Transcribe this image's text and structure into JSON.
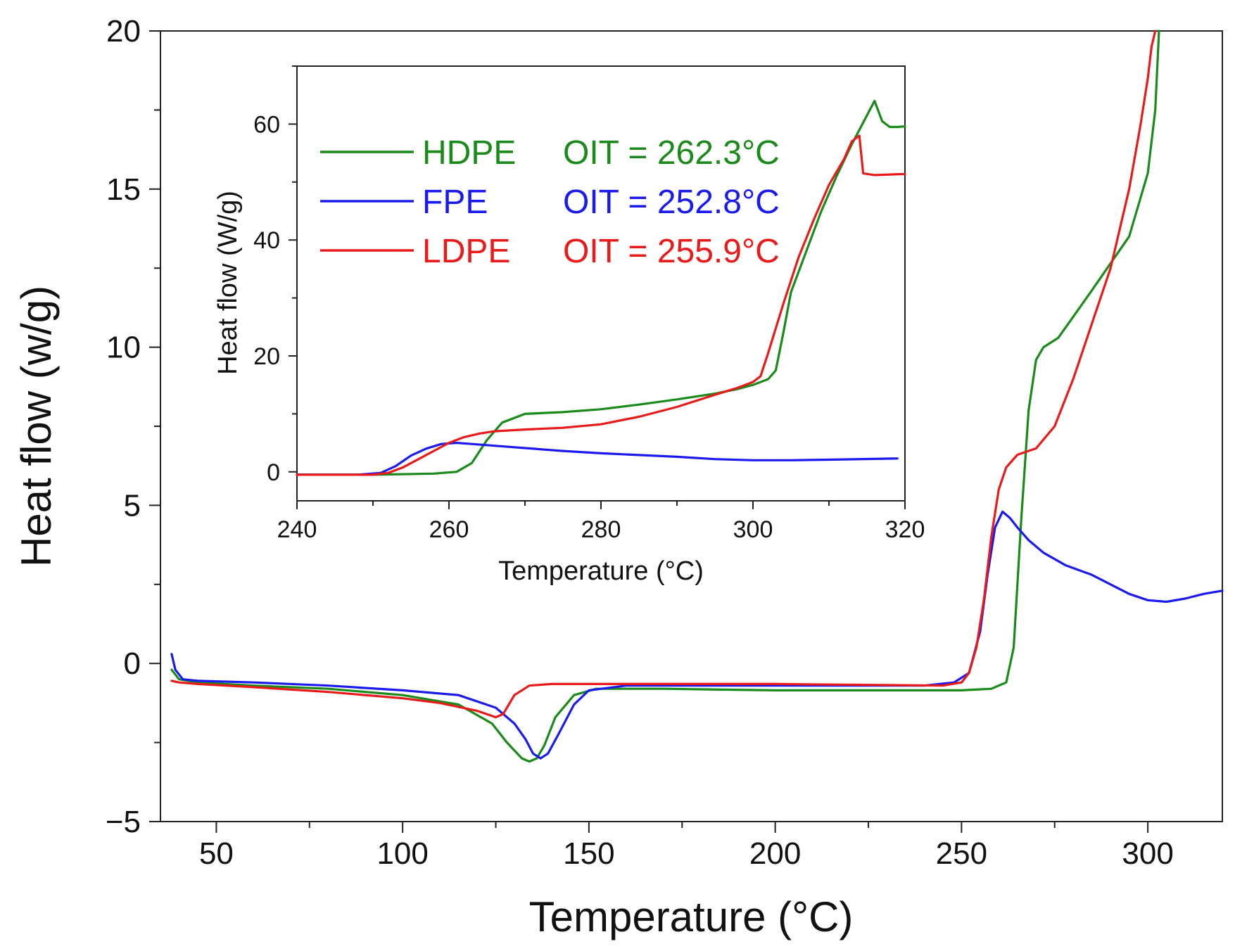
{
  "chart_data": [
    {
      "type": "line",
      "xlabel": "Temperature (°C)",
      "ylabel": "Heat flow (w/g)",
      "xlim": [
        35,
        320
      ],
      "ylim": [
        -5,
        20
      ],
      "xticks": [
        50,
        100,
        150,
        200,
        250,
        300
      ],
      "yticks": [
        -5,
        0,
        5,
        10,
        15,
        20
      ],
      "grid": false,
      "series": [
        {
          "name": "HDPE",
          "color": "#1a8a1a",
          "x": [
            38,
            40,
            45,
            60,
            80,
            100,
            115,
            124,
            128,
            132,
            134,
            136,
            138,
            141,
            146,
            152,
            170,
            200,
            230,
            250,
            258,
            262,
            264,
            266,
            268,
            270,
            272,
            276,
            285,
            295,
            300,
            302,
            303
          ],
          "y": [
            -0.2,
            -0.5,
            -0.6,
            -0.7,
            -0.8,
            -1.0,
            -1.3,
            -1.9,
            -2.5,
            -3.0,
            -3.1,
            -3.0,
            -2.6,
            -1.7,
            -1.0,
            -0.8,
            -0.8,
            -0.85,
            -0.85,
            -0.85,
            -0.8,
            -0.6,
            0.5,
            4.5,
            8.0,
            9.6,
            10.0,
            10.3,
            11.8,
            13.5,
            15.5,
            17.5,
            20
          ]
        },
        {
          "name": "FPE",
          "color": "#1a1aee",
          "x": [
            38,
            39,
            41,
            45,
            60,
            80,
            100,
            115,
            125,
            130,
            133,
            135,
            137,
            139,
            142,
            146,
            150,
            160,
            200,
            240,
            248,
            252,
            255,
            257,
            259,
            261,
            263,
            265,
            268,
            272,
            278,
            285,
            295,
            300,
            305,
            310,
            315,
            320
          ],
          "y": [
            0.3,
            -0.2,
            -0.5,
            -0.55,
            -0.6,
            -0.7,
            -0.85,
            -1.0,
            -1.4,
            -1.9,
            -2.4,
            -2.85,
            -3.0,
            -2.85,
            -2.2,
            -1.3,
            -0.85,
            -0.7,
            -0.7,
            -0.7,
            -0.6,
            -0.3,
            1.0,
            2.8,
            4.3,
            4.8,
            4.6,
            4.3,
            3.9,
            3.5,
            3.1,
            2.8,
            2.2,
            2.0,
            1.95,
            2.05,
            2.2,
            2.3
          ]
        },
        {
          "name": "LDPE",
          "color": "#e81a1a",
          "x": [
            38,
            40,
            45,
            60,
            80,
            100,
            110,
            120,
            125,
            127,
            130,
            134,
            140,
            150,
            200,
            245,
            250,
            252,
            254,
            256,
            258,
            260,
            262,
            265,
            270,
            275,
            280,
            290,
            295,
            298,
            300,
            301,
            302
          ],
          "y": [
            -0.55,
            -0.6,
            -0.65,
            -0.75,
            -0.9,
            -1.1,
            -1.25,
            -1.5,
            -1.7,
            -1.6,
            -1.0,
            -0.7,
            -0.65,
            -0.65,
            -0.65,
            -0.7,
            -0.6,
            -0.3,
            0.5,
            2.0,
            4.0,
            5.5,
            6.2,
            6.6,
            6.8,
            7.5,
            9.0,
            12.5,
            15.0,
            17.0,
            18.5,
            19.5,
            20
          ]
        }
      ]
    },
    {
      "type": "line",
      "inset": true,
      "xlabel": "Temperature (°C)",
      "ylabel": "Heat flow (W/g)",
      "xlim": [
        240,
        320
      ],
      "ylim": [
        -5,
        70
      ],
      "xticks": [
        240,
        260,
        280,
        300,
        320
      ],
      "yticks": [
        0,
        20,
        40,
        60
      ],
      "grid": false,
      "legend": {
        "position": "top-left",
        "entries": [
          {
            "name": "HDPE",
            "label": "HDPE",
            "oit": "OIT = 262.3°C",
            "color": "#1a8a1a"
          },
          {
            "name": "FPE",
            "label": "FPE",
            "oit": "OIT = 252.8°C",
            "color": "#1a1aee"
          },
          {
            "name": "LDPE",
            "label": "LDPE",
            "oit": "OIT = 255.9°C",
            "color": "#e81a1a"
          }
        ]
      },
      "series": [
        {
          "name": "HDPE",
          "color": "#1a8a1a",
          "x": [
            240,
            250,
            258,
            261,
            263,
            265,
            267,
            270,
            275,
            280,
            285,
            290,
            295,
            298,
            300,
            302,
            303,
            304,
            305,
            307,
            309,
            311,
            313,
            315,
            316,
            317,
            318,
            319,
            320
          ],
          "y": [
            -0.5,
            -0.5,
            -0.3,
            0.0,
            1.5,
            5.5,
            8.5,
            10.0,
            10.3,
            10.8,
            11.6,
            12.5,
            13.5,
            14.3,
            15.0,
            16.0,
            17.5,
            24.0,
            31.0,
            38.0,
            45.0,
            51.0,
            56.5,
            61.5,
            64.0,
            60.5,
            59.5,
            59.5,
            59.6
          ]
        },
        {
          "name": "FPE",
          "color": "#1a1aee",
          "x": [
            240,
            248,
            251,
            253,
            255,
            257,
            259,
            261,
            263,
            266,
            270,
            275,
            280,
            290,
            295,
            300,
            305,
            310,
            319
          ],
          "y": [
            -0.5,
            -0.5,
            -0.2,
            1.0,
            2.8,
            4.0,
            4.8,
            5.0,
            4.8,
            4.5,
            4.1,
            3.6,
            3.2,
            2.6,
            2.2,
            2.0,
            2.0,
            2.1,
            2.3
          ]
        },
        {
          "name": "LDPE",
          "color": "#e81a1a",
          "x": [
            240,
            250,
            252,
            254,
            256,
            258,
            260,
            262,
            264,
            266,
            270,
            275,
            280,
            285,
            290,
            295,
            298,
            300,
            301,
            302,
            304,
            306,
            308,
            310,
            312,
            313,
            314,
            314.5,
            316,
            318,
            320
          ],
          "y": [
            -0.5,
            -0.5,
            -0.2,
            0.8,
            2.2,
            3.6,
            5.0,
            6.0,
            6.6,
            7.0,
            7.3,
            7.6,
            8.2,
            9.5,
            11.2,
            13.3,
            14.5,
            15.5,
            16.5,
            20.5,
            29.0,
            37.0,
            43.5,
            49.5,
            54.0,
            57.0,
            58.0,
            51.5,
            51.2,
            51.3,
            51.4
          ]
        }
      ]
    }
  ]
}
